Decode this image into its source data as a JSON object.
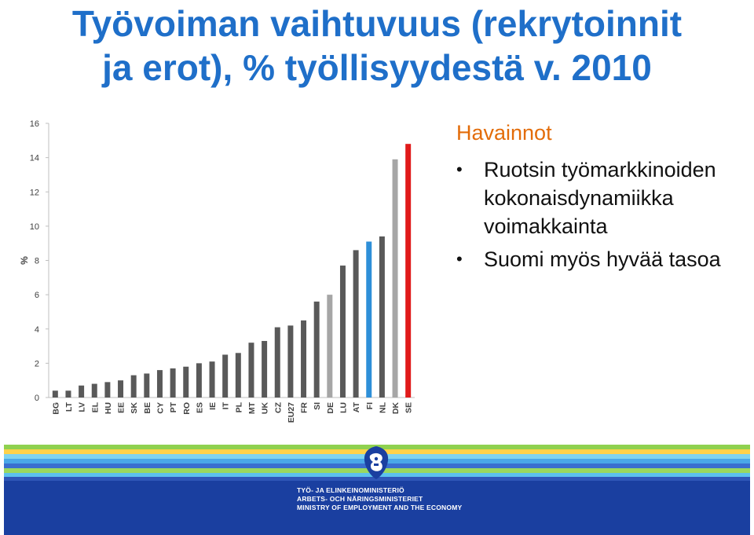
{
  "slide": {
    "title_line1": "Työvoiman vaihtuvuus (rekrytoinnit",
    "title_line2": "ja erot), % työllisyydestä v. 2010"
  },
  "chart_data": {
    "type": "bar",
    "title": "",
    "xlabel": "",
    "ylabel": "%",
    "ylim": [
      0,
      16
    ],
    "yticks": [
      0,
      2,
      4,
      6,
      8,
      10,
      12,
      14,
      16
    ],
    "grid": false,
    "categories": [
      "BG",
      "LT",
      "LV",
      "EL",
      "HU",
      "EE",
      "SK",
      "BE",
      "CY",
      "PT",
      "RO",
      "ES",
      "IE",
      "IT",
      "PL",
      "MT",
      "UK",
      "CZ",
      "EU27",
      "FR",
      "SI",
      "DE",
      "LU",
      "AT",
      "FI",
      "NL",
      "DK",
      "SE"
    ],
    "values": [
      0.4,
      0.4,
      0.7,
      0.8,
      0.9,
      1.0,
      1.3,
      1.4,
      1.6,
      1.7,
      1.8,
      2.0,
      2.1,
      2.5,
      2.6,
      3.2,
      3.3,
      4.1,
      4.2,
      4.5,
      5.6,
      6.0,
      7.7,
      8.6,
      9.1,
      9.4,
      13.9,
      14.8
    ],
    "colors": {
      "default": "#595959",
      "highlight_grey": "#a6a6a6",
      "highlight_blue": "#2e8fd8",
      "highlight_red": "#e01a1a"
    },
    "highlights": {
      "DE": "highlight_grey",
      "FI": "highlight_blue",
      "DK": "highlight_grey",
      "SE": "highlight_red"
    }
  },
  "notes": {
    "heading": "Havainnot",
    "bullets": [
      "Ruotsin työmarkkinoiden kokonaisdynamiikka voimakkainta",
      "Suomi myös hyvää tasoa"
    ]
  },
  "footer": {
    "logo_icon": "ministry-lion-crest-icon",
    "line1": "TYÖ- JA ELINKEINOMINISTERIÖ",
    "line2": "ARBETS- OCH NÄRINGSMINISTERIET",
    "line3": "MINISTRY OF EMPLOYMENT AND THE ECONOMY",
    "stripe_colors": [
      "#8fd14f",
      "#ffd24a",
      "#7fd3f0",
      "#4aa8e8",
      "#3a6fcf",
      "#9ad95f",
      "#5cc2ee",
      "#2f57b8"
    ]
  }
}
